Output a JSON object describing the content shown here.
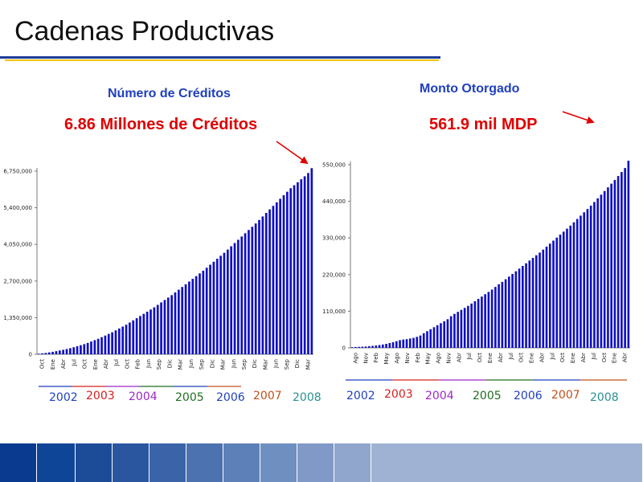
{
  "slide": {
    "title": "Cadenas Productivas"
  },
  "colors": {
    "bar": "#1010c0",
    "title_blue": "#1f3fbf",
    "total_red": "#e00000",
    "arrow_red": "#e00000",
    "rule_blue": "#1f3d99",
    "rule_gold": "#f2c300"
  },
  "footer_band": {
    "colors": [
      "#0a3a8f",
      "#0f4596",
      "#1c4c98",
      "#2a56a0",
      "#3b63a8",
      "#4d72b0",
      "#5e80b8",
      "#708fc1",
      "#8099c6",
      "#90a6cd",
      "#9fb2d4"
    ]
  },
  "chart_data": [
    {
      "type": "bar",
      "title": "Número de Créditos",
      "total_label": "6.86 Millones de Créditos",
      "yticks": [
        "6,750,000",
        "5,400,000",
        "4,050,000",
        "2,700,000",
        "1,350,000",
        "0"
      ],
      "ylim": [
        0,
        6750000
      ],
      "xtick_labels": [
        "Oct",
        "Ene",
        "Abr",
        "Jul",
        "Oct",
        "Ene",
        "Abr",
        "Jul",
        "Oct",
        "Feb",
        "Jun",
        "Sep",
        "Dic",
        "Mar",
        "Jun",
        "Sep",
        "Dic",
        "Mar",
        "Jun",
        "Sep",
        "Dic",
        "Mar",
        "Jun",
        "Sep",
        "Dic",
        "Mar"
      ],
      "years": [
        {
          "label": "2002",
          "color": "#1f3fbf"
        },
        {
          "label": "2003",
          "color": "#d42020"
        },
        {
          "label": "2004",
          "color": "#9a28c8"
        },
        {
          "label": "2005",
          "color": "#1e6e1e"
        },
        {
          "label": "2006",
          "color": "#1f3fbf"
        },
        {
          "label": "2007",
          "color": "#c0501a"
        },
        {
          "label": "2008",
          "color": "#2a9090"
        }
      ],
      "year_line_colors": [
        "#1f3fbf",
        "#d42020",
        "#9a28c8",
        "#1e6e1e",
        "#1f3fbf",
        "#c0501a"
      ],
      "values": [
        20000,
        35000,
        50000,
        70000,
        90000,
        115000,
        140000,
        165000,
        195000,
        225000,
        260000,
        295000,
        335000,
        375000,
        420000,
        470000,
        520000,
        570000,
        630000,
        690000,
        750000,
        810000,
        880000,
        950000,
        1020000,
        1090000,
        1170000,
        1250000,
        1330000,
        1410000,
        1490000,
        1570000,
        1650000,
        1730000,
        1820000,
        1910000,
        2000000,
        2090000,
        2180000,
        2280000,
        2380000,
        2480000,
        2580000,
        2680000,
        2780000,
        2880000,
        2980000,
        3080000,
        3190000,
        3300000,
        3410000,
        3520000,
        3630000,
        3740000,
        3860000,
        3980000,
        4100000,
        4220000,
        4340000,
        4460000,
        4580000,
        4700000,
        4820000,
        4950000,
        5080000,
        5210000,
        5340000,
        5470000,
        5600000,
        5730000,
        5860000,
        5990000,
        6120000,
        6230000,
        6340000,
        6450000,
        6560000,
        6680000,
        6860000
      ]
    },
    {
      "type": "bar",
      "title": "Monto Otorgado",
      "total_label": "561.9 mil MDP",
      "yticks": [
        "550,000",
        "440,000",
        "330,000",
        "220,000",
        "110,000",
        "0"
      ],
      "ylim": [
        0,
        550000
      ],
      "xtick_labels": [
        "Ago",
        "Nov",
        "Feb",
        "May",
        "Ago",
        "Nov",
        "Feb",
        "May",
        "Ago",
        "Nov",
        "Abr",
        "Jul",
        "Oct",
        "Ene",
        "Abr",
        "Jul",
        "Oct",
        "Ene",
        "Abr",
        "Jul",
        "Oct",
        "Ene",
        "Abr",
        "Jul",
        "Oct",
        "Ene",
        "Abr"
      ],
      "years": [
        {
          "label": "2002",
          "color": "#1f3fbf"
        },
        {
          "label": "2003",
          "color": "#d42020"
        },
        {
          "label": "2004",
          "color": "#9a28c8"
        },
        {
          "label": "2005",
          "color": "#1e6e1e"
        },
        {
          "label": "2006",
          "color": "#1f3fbf"
        },
        {
          "label": "2007",
          "color": "#c0501a"
        },
        {
          "label": "2008",
          "color": "#2a9090"
        }
      ],
      "year_line_colors": [
        "#1f3fbf",
        "#d42020",
        "#9a28c8",
        "#1e6e1e",
        "#1f3fbf",
        "#c0501a"
      ],
      "values": [
        2000,
        2500,
        3000,
        3500,
        4000,
        5000,
        6000,
        7000,
        8500,
        10000,
        12000,
        14500,
        17000,
        20000,
        23000,
        25000,
        26000,
        28000,
        30000,
        33000,
        37000,
        44000,
        50000,
        56000,
        62000,
        68000,
        74000,
        80000,
        86000,
        95000,
        102000,
        108000,
        114000,
        120000,
        126000,
        133000,
        140000,
        147000,
        154000,
        161000,
        168000,
        175000,
        183000,
        191000,
        198000,
        206000,
        214000,
        222000,
        230000,
        238000,
        246000,
        254000,
        262000,
        270000,
        278000,
        286000,
        295000,
        304000,
        313000,
        322000,
        331000,
        340000,
        349000,
        358000,
        367000,
        377000,
        387000,
        397000,
        407000,
        417000,
        427000,
        438000,
        449000,
        460000,
        471000,
        482000,
        493000,
        504000,
        516000,
        528000,
        540000,
        561900
      ]
    }
  ]
}
